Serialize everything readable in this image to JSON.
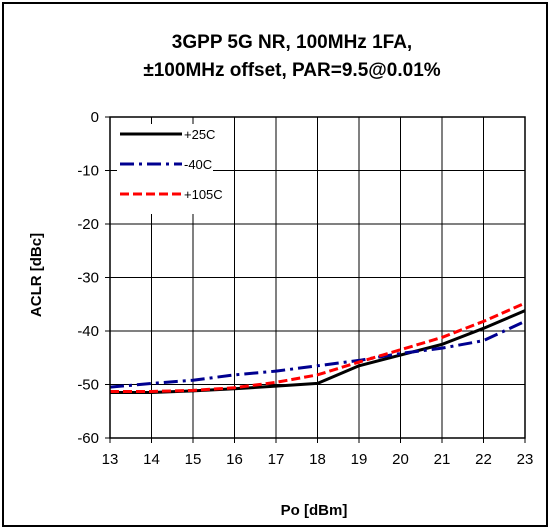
{
  "chart_data": {
    "type": "line",
    "title": [
      "3GPP 5G NR, 100MHz 1FA,",
      "±100MHz offset, PAR=9.5@0.01%"
    ],
    "xlabel": "Po [dBm]",
    "ylabel": "ACLR [dBc]",
    "xlim": [
      13,
      23
    ],
    "ylim": [
      -60,
      0
    ],
    "xticks": [
      "13",
      "14",
      "15",
      "16",
      "17",
      "18",
      "19",
      "20",
      "21",
      "22",
      "23"
    ],
    "yticks": [
      "0",
      "-10",
      "-20",
      "-30",
      "-40",
      "-50",
      "-60"
    ],
    "grid": true,
    "legend_position": "top-left",
    "series": [
      {
        "name": "+25C",
        "color": "#000000",
        "dash": "solid",
        "x": [
          13,
          14,
          15,
          16,
          17,
          18,
          19,
          20,
          21,
          22,
          23
        ],
        "y": [
          -51.5,
          -51.5,
          -51.2,
          -50.8,
          -50.3,
          -49.8,
          -46.5,
          -44.5,
          -42.5,
          -39.5,
          -36.2
        ]
      },
      {
        "name": "-40C",
        "color": "#000090",
        "dash": "dashdot",
        "x": [
          13,
          14,
          15,
          16,
          17,
          18,
          19,
          20,
          21,
          22,
          23
        ],
        "y": [
          -50.5,
          -49.8,
          -49.2,
          -48.2,
          -47.5,
          -46.5,
          -45.5,
          -44.2,
          -43.2,
          -41.8,
          -38.2
        ]
      },
      {
        "name": "+105C",
        "color": "#ff0000",
        "dash": "dashed",
        "x": [
          13,
          14,
          15,
          16,
          17,
          18,
          19,
          20,
          21,
          22,
          23
        ],
        "y": [
          -51.3,
          -51.3,
          -51.1,
          -50.6,
          -49.6,
          -48.2,
          -45.8,
          -43.5,
          -41.2,
          -38.2,
          -34.8
        ]
      }
    ]
  }
}
